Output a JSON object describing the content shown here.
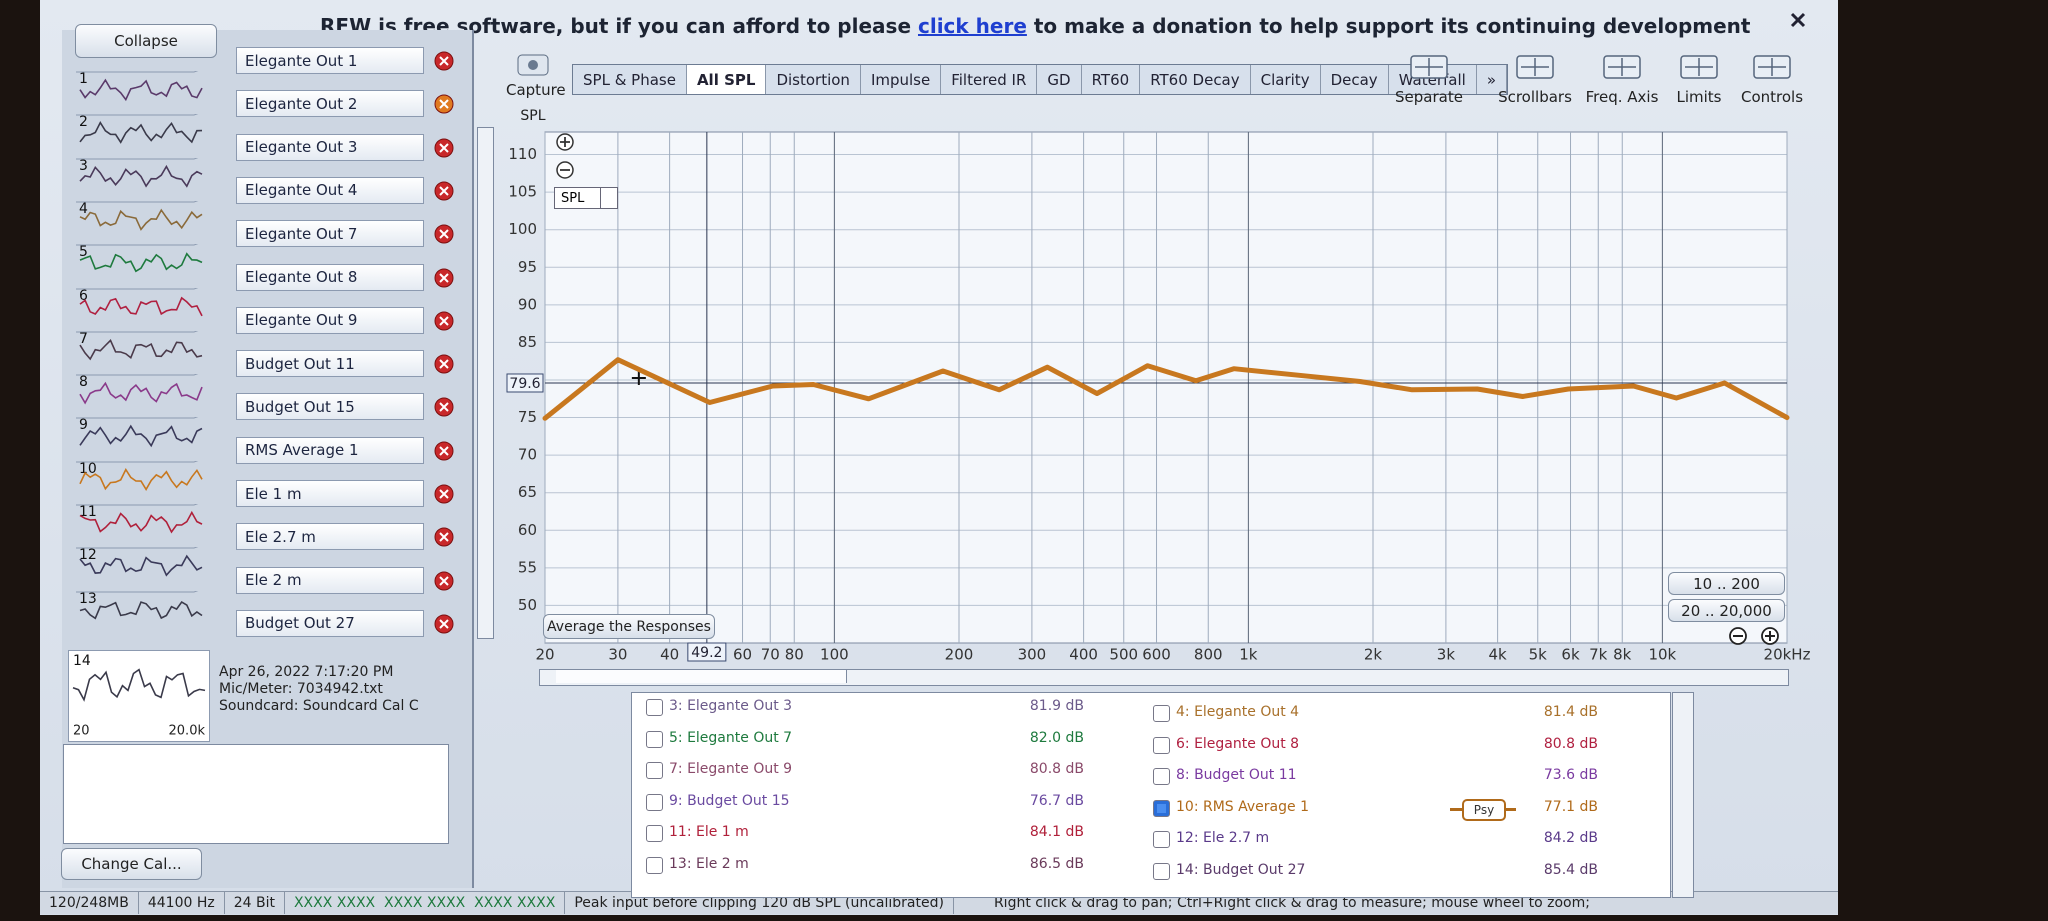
{
  "banner": {
    "before": "REW is free software, but if you can afford to please",
    "link": "click here",
    "after": "to make a donation to help support its continuing development"
  },
  "sidebar": {
    "collapse": "Collapse",
    "measurements": [
      {
        "number": 1,
        "name": "Elegante Out 1",
        "color": "#5a3a6a"
      },
      {
        "number": 2,
        "name": "Elegante Out 2",
        "color": "#3a3a4a"
      },
      {
        "number": 3,
        "name": "Elegante Out 3",
        "color": "#4a3a5a"
      },
      {
        "number": 4,
        "name": "Elegante Out 4",
        "color": "#8a6a3a"
      },
      {
        "number": 5,
        "name": "Elegante Out 7",
        "color": "#1e7a3e"
      },
      {
        "number": 6,
        "name": "Elegante Out 8",
        "color": "#b02040"
      },
      {
        "number": 7,
        "name": "Elegante Out 9",
        "color": "#4a3a4a"
      },
      {
        "number": 8,
        "name": "Budget Out 11",
        "color": "#8a3a8a"
      },
      {
        "number": 9,
        "name": "Budget Out 15",
        "color": "#3a3a5a"
      },
      {
        "number": 10,
        "name": "RMS Average 1",
        "color": "#c8781f"
      },
      {
        "number": 11,
        "name": "Ele 1 m",
        "color": "#b0203a"
      },
      {
        "number": 12,
        "name": "Ele 2.7 m",
        "color": "#3a3a5a"
      },
      {
        "number": 13,
        "name": "Ele 2 m",
        "color": "#3a3a4a"
      },
      {
        "number": 14,
        "name": "Budget Out 27",
        "color": "#3a3a4a"
      }
    ],
    "detail": {
      "date": "Apr 26, 2022 7:17:20 PM",
      "mic": "Mic/Meter: 7034942.txt",
      "soundcard": "Soundcard: Soundcard Cal C",
      "thumb_min": "20",
      "thumb_max": "20.0k"
    },
    "change_cal": "Change Cal..."
  },
  "toolbar": {
    "capture": "Capture",
    "tabs": [
      "SPL & Phase",
      "All SPL",
      "Distortion",
      "Impulse",
      "Filtered IR",
      "GD",
      "RT60",
      "RT60 Decay",
      "Clarity",
      "Decay",
      "Waterfall",
      "»"
    ],
    "active_tab": 1,
    "tools": [
      "Separate",
      "Scrollbars",
      "Freq. Axis",
      "Limits",
      "Controls"
    ]
  },
  "chart_controls": {
    "dropdown": "SPL",
    "average": "Average the Responses",
    "zoom_presets": [
      "10 .. 200",
      "20 .. 20,000"
    ]
  },
  "chart_data": {
    "type": "line",
    "y_axis_label": "SPL",
    "x": [
      20,
      30,
      50,
      71,
      89,
      121,
      183,
      250,
      327,
      431,
      571,
      747,
      922,
      1393,
      1862,
      2486,
      3572,
      4596,
      5927,
      8511,
      10810,
      14130,
      20000
    ],
    "series": [
      {
        "color": "#c8781f",
        "values": [
          74.9,
          82.7,
          77.0,
          79.2,
          79.4,
          77.5,
          81.2,
          78.7,
          81.7,
          78.2,
          81.9,
          79.9,
          81.5,
          80.5,
          79.8,
          78.7,
          78.8,
          77.8,
          78.8,
          79.2,
          77.6,
          79.6,
          75.0
        ]
      }
    ],
    "xlim": [
      20,
      20000
    ],
    "ylim": [
      45,
      113
    ],
    "x_log": true,
    "grid": true,
    "xticks": [
      20,
      30,
      40,
      60,
      70,
      80,
      100,
      200,
      300,
      400,
      500,
      600,
      800,
      {
        "value": 1000,
        "label": "1k"
      },
      {
        "value": 2000,
        "label": "2k"
      },
      {
        "value": 3000,
        "label": "3k"
      },
      {
        "value": 4000,
        "label": "4k"
      },
      {
        "value": 5000,
        "label": "5k"
      },
      {
        "value": 6000,
        "label": "6k"
      },
      {
        "value": 7000,
        "label": "7k"
      },
      {
        "value": 8000,
        "label": "8k"
      },
      {
        "value": 10000,
        "label": "10k"
      },
      {
        "value": 20000,
        "label": "20kHz"
      }
    ],
    "yticks": [
      50,
      55,
      60,
      65,
      70,
      75,
      80,
      85,
      90,
      95,
      100,
      105,
      110
    ],
    "cursor": {
      "x": 49.2,
      "y": 79.6
    }
  },
  "legend_table": {
    "left": [
      {
        "label": "3: Elegante Out 3",
        "level": "81.9 dB",
        "color": "#6b5a8a",
        "checked": false
      },
      {
        "label": "5: Elegante Out 7",
        "level": "82.0 dB",
        "color": "#1e7a3e",
        "checked": false
      },
      {
        "label": "7: Elegante Out 9",
        "level": "80.8 dB",
        "color": "#8a4a6a",
        "checked": false
      },
      {
        "label": "9: Budget Out 15",
        "level": "76.7 dB",
        "color": "#6a4aa0",
        "checked": false
      },
      {
        "label": "11: Ele 1 m",
        "level": "84.1 dB",
        "color": "#b0203a",
        "checked": false
      },
      {
        "label": "13: Ele 2 m",
        "level": "86.5 dB",
        "color": "#6a3a5a",
        "checked": false
      }
    ],
    "right": [
      {
        "label": "4: Elegante Out 4",
        "level": "81.4 dB",
        "color": "#a8702a",
        "checked": false
      },
      {
        "label": "6: Elegante Out 8",
        "level": "80.8 dB",
        "color": "#b02040",
        "checked": false
      },
      {
        "label": "8: Budget Out 11",
        "level": "73.6 dB",
        "color": "#7a3aa0",
        "checked": false
      },
      {
        "label": "10: RMS Average 1",
        "level": "77.1 dB",
        "color": "#b06a1a",
        "checked": true,
        "badge": "Psy"
      },
      {
        "label": "12: Ele 2.7 m",
        "level": "84.2 dB",
        "color": "#5a3a8a",
        "checked": false
      },
      {
        "label": "14: Budget Out 27",
        "level": "85.4 dB",
        "color": "#5a3a6a",
        "checked": false
      }
    ]
  },
  "status_bar": [
    "120/248MB",
    "44100 Hz",
    "24 Bit",
    "XXXX XXXX  XXXX XXXX  XXXX XXXX",
    "Peak input before clipping 120 dB SPL (uncalibrated)",
    "Right click & drag to pan; Ctrl+Right click & drag to measure; mouse wheel to zoom;"
  ]
}
